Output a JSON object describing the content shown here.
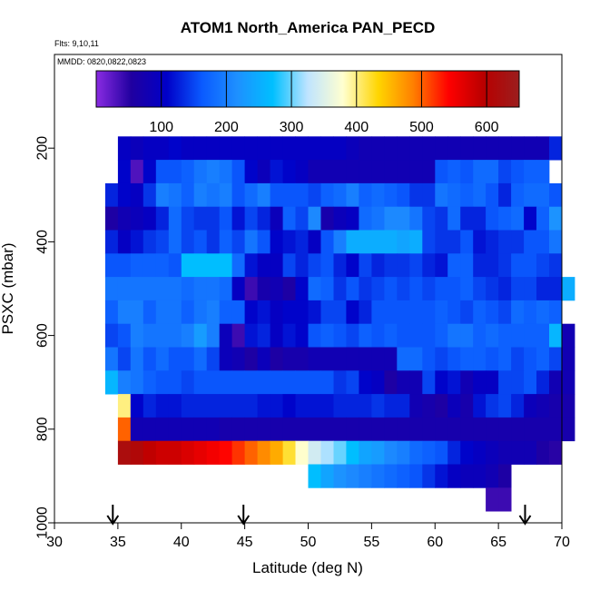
{
  "chart_data": {
    "type": "heatmap",
    "title": "ATOM1 North_America PAN_PECD",
    "notes": {
      "flights": "Flts: 9,10,11",
      "dates": "MMDD: 0820,0822,0823"
    },
    "xlabel": "Latitude (deg N)",
    "ylabel": "PSXC (mbar)",
    "xlim": [
      30,
      70
    ],
    "ylim": [
      1000,
      0
    ],
    "xticks": [
      "30",
      "35",
      "40",
      "45",
      "50",
      "55",
      "60",
      "65",
      "70"
    ],
    "yticks": [
      "200",
      "400",
      "600",
      "800",
      "1000"
    ],
    "colorbar": {
      "range": [
        0,
        650
      ],
      "ticks": [
        "100",
        "200",
        "300",
        "400",
        "500",
        "600"
      ],
      "stops": [
        "#8a2be2",
        "#2000a0",
        "#0000c8",
        "#0a5aff",
        "#1e90ff",
        "#00bfff",
        "#bfe4ff",
        "#ffffd0",
        "#ffd500",
        "#ff7f00",
        "#ff0000",
        "#b80000",
        "#9b1e1e"
      ]
    },
    "flight_markers_lat": [
      34.6,
      44.9,
      67.1
    ],
    "bin_lat_width": 1.0,
    "rows": [
      {
        "p": 200,
        "lat0": 35,
        "values": [
          100,
          90,
          100,
          100,
          110,
          100,
          100,
          100,
          100,
          100,
          100,
          100,
          100,
          100,
          100,
          100,
          100,
          100,
          90,
          80,
          80,
          80,
          80,
          80,
          80,
          80,
          80,
          80,
          80,
          80,
          80,
          80,
          80,
          80,
          130
        ]
      },
      {
        "p": 250,
        "lat0": 35,
        "values": [
          110,
          30,
          110,
          160,
          160,
          170,
          190,
          200,
          190,
          160,
          110,
          90,
          120,
          110,
          100,
          80,
          80,
          80,
          80,
          80,
          80,
          80,
          80,
          80,
          80,
          160,
          170,
          160,
          180,
          180,
          150,
          160,
          170,
          170
        ]
      },
      {
        "p": 300,
        "lat0": 34,
        "values": [
          130,
          110,
          100,
          140,
          200,
          190,
          170,
          200,
          190,
          200,
          160,
          180,
          200,
          160,
          160,
          160,
          150,
          170,
          180,
          200,
          170,
          180,
          170,
          160,
          140,
          140,
          190,
          180,
          170,
          180,
          160,
          130,
          170,
          180,
          180,
          160
        ]
      },
      {
        "p": 350,
        "lat0": 34,
        "values": [
          60,
          80,
          90,
          100,
          130,
          180,
          150,
          140,
          140,
          160,
          120,
          150,
          130,
          90,
          170,
          150,
          210,
          70,
          90,
          100,
          180,
          190,
          210,
          210,
          190,
          150,
          140,
          180,
          130,
          130,
          160,
          170,
          180,
          110,
          170,
          220
        ]
      },
      {
        "p": 400,
        "lat0": 34,
        "values": [
          130,
          100,
          120,
          140,
          150,
          180,
          150,
          160,
          140,
          170,
          150,
          190,
          160,
          110,
          120,
          130,
          100,
          160,
          200,
          250,
          250,
          250,
          250,
          240,
          250,
          150,
          140,
          140,
          160,
          120,
          130,
          140,
          140,
          160,
          160,
          190
        ]
      },
      {
        "p": 450,
        "lat0": 34,
        "values": [
          160,
          160,
          170,
          170,
          170,
          160,
          270,
          270,
          270,
          270,
          180,
          120,
          100,
          100,
          150,
          130,
          150,
          160,
          130,
          110,
          150,
          130,
          140,
          140,
          150,
          130,
          120,
          170,
          170,
          130,
          130,
          140,
          160,
          160,
          150,
          140
        ]
      },
      {
        "p": 500,
        "lat0": 34,
        "values": [
          190,
          190,
          190,
          190,
          190,
          190,
          180,
          190,
          190,
          180,
          100,
          40,
          70,
          80,
          60,
          110,
          180,
          170,
          140,
          160,
          140,
          150,
          160,
          150,
          160,
          150,
          160,
          160,
          170,
          150,
          140,
          130,
          150,
          150,
          130,
          130,
          250
        ]
      },
      {
        "p": 550,
        "lat0": 34,
        "values": [
          170,
          200,
          200,
          170,
          190,
          190,
          170,
          190,
          200,
          170,
          170,
          110,
          120,
          100,
          110,
          110,
          120,
          150,
          150,
          110,
          130,
          160,
          160,
          160,
          160,
          160,
          170,
          160,
          150,
          170,
          160,
          150,
          180,
          170,
          180,
          170
        ]
      },
      {
        "p": 600,
        "lat0": 34,
        "values": [
          150,
          160,
          200,
          190,
          190,
          190,
          200,
          230,
          200,
          90,
          40,
          120,
          130,
          100,
          120,
          110,
          160,
          170,
          160,
          150,
          170,
          160,
          170,
          160,
          160,
          160,
          170,
          190,
          190,
          170,
          180,
          170,
          170,
          170,
          170,
          260,
          80
        ]
      },
      {
        "p": 650,
        "lat0": 34,
        "values": [
          190,
          150,
          190,
          160,
          180,
          160,
          160,
          180,
          150,
          90,
          80,
          60,
          90,
          60,
          70,
          70,
          80,
          80,
          80,
          80,
          80,
          80,
          80,
          180,
          180,
          160,
          150,
          160,
          170,
          170,
          160,
          170,
          150,
          160,
          170,
          150,
          80
        ]
      },
      {
        "p": 700,
        "lat0": 34,
        "values": [
          260,
          200,
          190,
          170,
          160,
          160,
          150,
          160,
          160,
          160,
          160,
          160,
          160,
          160,
          160,
          160,
          160,
          160,
          140,
          150,
          110,
          100,
          60,
          80,
          80,
          150,
          110,
          120,
          80,
          100,
          100,
          150,
          150,
          160,
          130,
          80,
          80
        ]
      },
      {
        "p": 750,
        "lat0": 35,
        "values": [
          400,
          110,
          130,
          120,
          120,
          130,
          130,
          130,
          130,
          130,
          130,
          120,
          120,
          110,
          120,
          120,
          120,
          130,
          130,
          130,
          140,
          130,
          130,
          80,
          70,
          60,
          90,
          70,
          120,
          140,
          150,
          130,
          90,
          80,
          70,
          70
        ]
      },
      {
        "p": 800,
        "lat0": 35,
        "values": [
          500,
          80,
          80,
          80,
          80,
          80,
          80,
          80,
          70,
          70,
          70,
          70,
          70,
          70,
          70,
          70,
          70,
          70,
          70,
          70,
          70,
          70,
          70,
          70,
          70,
          70,
          70,
          70,
          70,
          70,
          70,
          70,
          70,
          70,
          70,
          70
        ]
      },
      {
        "p": 850,
        "lat0": 35,
        "values": [
          620,
          610,
          590,
          580,
          580,
          570,
          560,
          550,
          540,
          520,
          500,
          480,
          460,
          420,
          380,
          340,
          320,
          300,
          270,
          240,
          230,
          210,
          200,
          180,
          170,
          160,
          130,
          110,
          100,
          90,
          80,
          80,
          80,
          60,
          50
        ]
      },
      {
        "p": 900,
        "lat0": 50,
        "values": [
          270,
          240,
          220,
          210,
          200,
          190,
          180,
          170,
          160,
          140,
          120,
          100,
          90,
          90,
          80,
          60
        ]
      },
      {
        "p": 950,
        "lat0": 64,
        "values": [
          40,
          40
        ]
      }
    ]
  }
}
